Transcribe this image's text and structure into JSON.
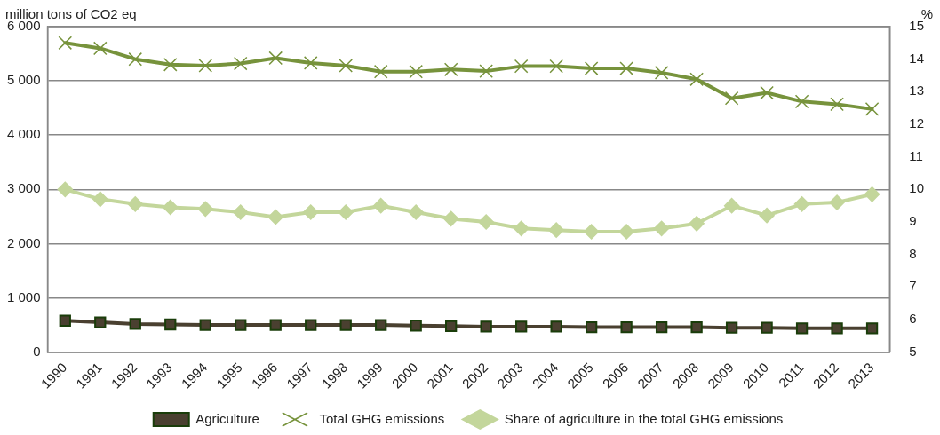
{
  "chart_data": {
    "type": "line",
    "ylabel": "million tons of CO2 eq",
    "y2label": "%",
    "categories": [
      "1990",
      "1991",
      "1992",
      "1993",
      "1994",
      "1995",
      "1996",
      "1997",
      "1998",
      "1999",
      "2000",
      "2001",
      "2002",
      "2003",
      "2004",
      "2005",
      "2006",
      "2007",
      "2008",
      "2009",
      "2010",
      "2011",
      "2012",
      "2013"
    ],
    "series": [
      {
        "name": "Agriculture",
        "color": "#4a4030",
        "marker": "square",
        "values": [
          580,
          550,
          520,
          510,
          500,
          500,
          500,
          500,
          500,
          500,
          490,
          480,
          470,
          470,
          470,
          460,
          460,
          460,
          460,
          450,
          450,
          440,
          440,
          440
        ]
      },
      {
        "name": "Total GHG emissions",
        "color": "#77933c",
        "marker": "cross",
        "values": [
          5700,
          5600,
          5400,
          5300,
          5280,
          5320,
          5420,
          5330,
          5280,
          5170,
          5170,
          5210,
          5180,
          5270,
          5270,
          5230,
          5230,
          5150,
          5030,
          4680,
          4780,
          4620,
          4570,
          4480
        ]
      },
      {
        "name": "Share of agriculture in the total GHG emissions",
        "color": "#c3d69b",
        "marker": "diamond",
        "axis": "y2",
        "values": [
          10.0,
          9.7,
          9.55,
          9.45,
          9.4,
          9.3,
          9.15,
          9.3,
          9.3,
          9.5,
          9.3,
          9.1,
          9.0,
          8.8,
          8.75,
          8.7,
          8.7,
          8.8,
          8.95,
          9.5,
          9.2,
          9.55,
          9.6,
          9.85
        ]
      }
    ],
    "ylim": [
      0,
      6000
    ],
    "yticks": [
      {
        "value": 0,
        "label": "0"
      },
      {
        "value": 1000,
        "label": "1 000"
      },
      {
        "value": 2000,
        "label": "2 000"
      },
      {
        "value": 3000,
        "label": "3 000"
      },
      {
        "value": 4000,
        "label": "4 000"
      },
      {
        "value": 5000,
        "label": "5 000"
      },
      {
        "value": 6000,
        "label": "6 000"
      }
    ],
    "y2lim": [
      5,
      15
    ],
    "y2ticks": [
      5,
      6,
      7,
      8,
      9,
      10,
      11,
      12,
      13,
      14,
      15
    ],
    "grid": "y",
    "legend": "bottom",
    "line_style": "solid"
  }
}
